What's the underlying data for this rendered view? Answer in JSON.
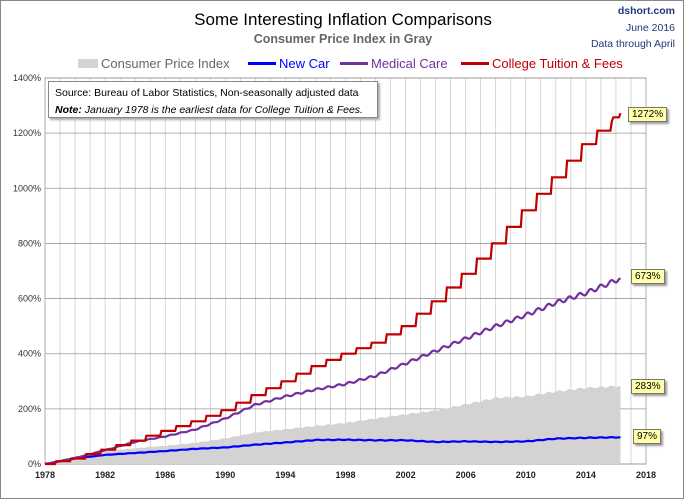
{
  "header": {
    "title": "Some Interesting Inflation Comparisons",
    "subtitle": "Consumer Price Index in Gray",
    "site": "dshort.com",
    "date": "June 2016",
    "data_note": "Data through April"
  },
  "note": {
    "source": "Source: Bureau of Labor Statistics, Non-seasonally adjusted data",
    "note_label": "Note:",
    "note_text": " January 1978 is the earliest data for College Tuition & Fees."
  },
  "chart_data": {
    "type": "line",
    "title": "Some Interesting Inflation Comparisons",
    "subtitle": "Consumer Price Index in Gray",
    "xlim": [
      1978,
      2018
    ],
    "ylim": [
      0,
      1400
    ],
    "xticks": [
      "1978",
      "1982",
      "1986",
      "1990",
      "1994",
      "1998",
      "2002",
      "2006",
      "2010",
      "2014",
      "2018"
    ],
    "yticks": [
      "0%",
      "200%",
      "400%",
      "600%",
      "800%",
      "1000%",
      "1200%",
      "1400%"
    ],
    "grid": true,
    "legend": "top",
    "x": [
      1978,
      1980,
      1982,
      1984,
      1986,
      1988,
      1990,
      1992,
      1994,
      1996,
      1998,
      2000,
      2002,
      2004,
      2006,
      2008,
      2010,
      2012,
      2014,
      2016.3
    ],
    "series": [
      {
        "name": "Consumer Price Index",
        "kind": "area",
        "color": "#d3d3d3",
        "values": [
          0,
          24,
          47,
          57,
          66,
          77,
          93,
          114,
          126,
          138,
          149,
          165,
          180,
          194,
          216,
          240,
          245,
          263,
          276,
          283
        ],
        "end_label": "283%"
      },
      {
        "name": "New Car",
        "color": "#0000ff",
        "values": [
          0,
          20,
          33,
          40,
          47,
          55,
          60,
          70,
          78,
          87,
          88,
          86,
          86,
          80,
          82,
          80,
          82,
          92,
          95,
          97
        ],
        "end_label": "97%"
      },
      {
        "name": "Medical Care",
        "color": "#7030a0",
        "values": [
          0,
          22,
          50,
          80,
          100,
          125,
          165,
          215,
          245,
          270,
          290,
          320,
          365,
          410,
          455,
          500,
          540,
          585,
          620,
          673
        ],
        "end_label": "673%"
      },
      {
        "name": "College Tuition & Fees",
        "color": "#c00000",
        "stepped": true,
        "values": [
          0,
          20,
          52,
          85,
          120,
          155,
          195,
          250,
          300,
          355,
          400,
          440,
          500,
          590,
          690,
          800,
          920,
          1040,
          1160,
          1272
        ],
        "end_label": "1272%"
      }
    ]
  }
}
